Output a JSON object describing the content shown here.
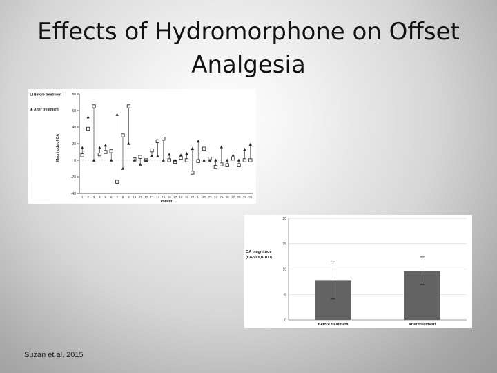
{
  "slide": {
    "title_line1": "Effects of Hydromorphone on Offset",
    "title_line2": "Analgesia",
    "citation": "Suzan et al. 2015"
  },
  "chart_data": [
    {
      "type": "scatter",
      "xlabel": "Patient",
      "ylabel": "Magnitude of OA",
      "ylim": [
        -40,
        80
      ],
      "yticks": [
        -40,
        -20,
        0,
        20,
        40,
        60,
        80
      ],
      "grid": false,
      "legend_position": "top-left",
      "categories": [
        "1",
        "2",
        "3",
        "4",
        "5",
        "6",
        "7",
        "8",
        "9",
        "10",
        "11",
        "12",
        "13",
        "14",
        "15",
        "16",
        "17",
        "18",
        "19",
        "20",
        "21",
        "22",
        "23",
        "24",
        "25",
        "26",
        "27",
        "28",
        "29",
        "30"
      ],
      "series": [
        {
          "name": "Before treatment",
          "marker": "open-square",
          "color": "#333333",
          "values": [
            6,
            38,
            65,
            7,
            10,
            11,
            -26,
            30,
            65,
            1,
            4,
            0,
            12,
            23,
            26,
            0,
            -2,
            3,
            0,
            -15,
            -1,
            14,
            2,
            -8,
            -5,
            -6,
            2,
            -6,
            0,
            0
          ]
        },
        {
          "name": "After treatment",
          "marker": "filled-triangle",
          "color": "#222222",
          "values": [
            15,
            52,
            0,
            15,
            18,
            0,
            55,
            -10,
            20,
            0,
            -5,
            0,
            5,
            5,
            0,
            7,
            0,
            6,
            8,
            14,
            23,
            0,
            0,
            0,
            16,
            0,
            6,
            0,
            13,
            19
          ]
        }
      ]
    },
    {
      "type": "bar",
      "categories": [
        "Before treatment",
        "After treatment"
      ],
      "values": [
        7.7,
        9.6
      ],
      "error_low": [
        4.1,
        7.0
      ],
      "error_high": [
        11.4,
        12.4
      ],
      "ylabel_line1": "OA magnitude",
      "ylabel_line2": "(Co-Vas,0-100)",
      "ylim": [
        0,
        20
      ],
      "yticks": [
        0,
        5,
        10,
        15,
        20
      ],
      "bar_color": "#636363",
      "grid": true
    }
  ]
}
